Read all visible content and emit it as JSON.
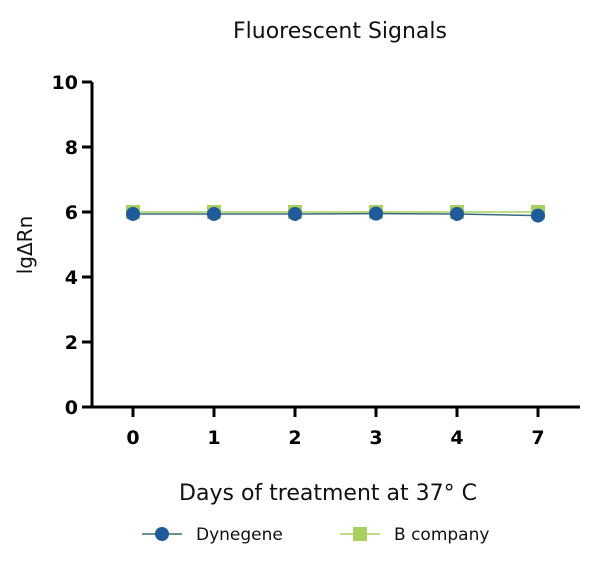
{
  "chart_data": {
    "type": "line",
    "title": "Fluorescent Signals",
    "xlabel": "Days of treatment at 37° C",
    "ylabel": "lgΔRn",
    "categories": [
      "0",
      "1",
      "2",
      "3",
      "4",
      "7"
    ],
    "ylim": [
      0,
      10
    ],
    "yticks": [
      "0",
      "2",
      "4",
      "6",
      "8",
      "10"
    ],
    "grid": false,
    "legend": "bottom",
    "series": [
      {
        "name": "Dynegene",
        "values": [
          5.94,
          5.94,
          5.94,
          5.95,
          5.94,
          5.89
        ],
        "color": "#1f5a9a",
        "marker": "circle"
      },
      {
        "name": "B company",
        "values": [
          6.0,
          6.0,
          6.0,
          6.0,
          6.0,
          6.0
        ],
        "color": "#a8d060",
        "marker": "square"
      }
    ]
  }
}
